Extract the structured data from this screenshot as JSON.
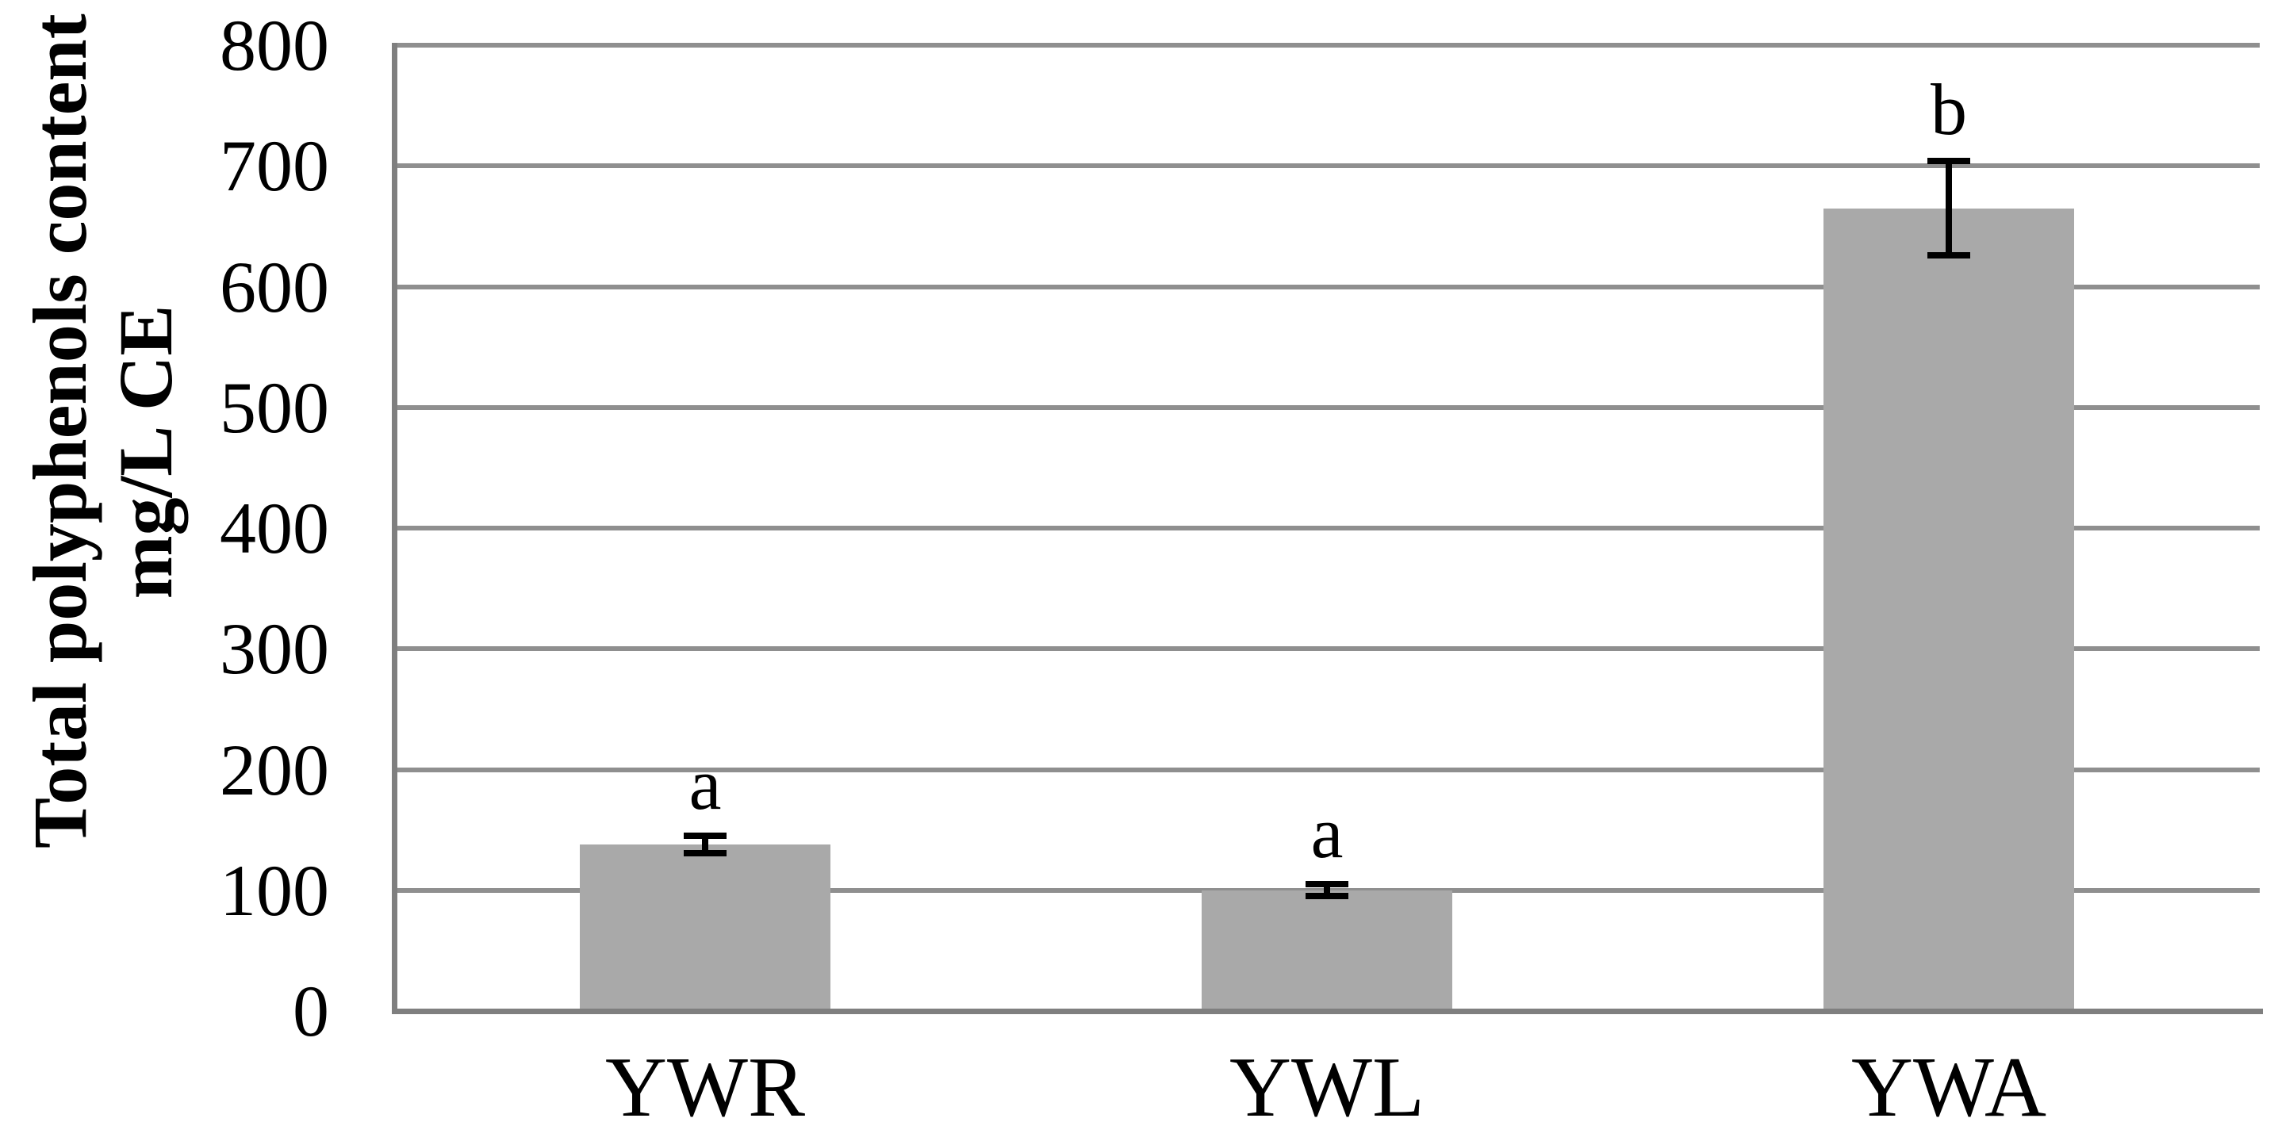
{
  "chart_data": {
    "type": "bar",
    "title": "",
    "categories": [
      "YWR",
      "YWL",
      "YWA"
    ],
    "values": [
      138,
      100,
      665
    ],
    "errors": [
      7,
      5,
      39
    ],
    "sig_letters": [
      "a",
      "a",
      "b"
    ],
    "ylabel_line1": "Total polyphenols content",
    "ylabel_line2": "mg/L CE",
    "xlabel": "",
    "ylim": [
      0,
      800
    ],
    "yticks": [
      0,
      100,
      200,
      300,
      400,
      500,
      600,
      700,
      800
    ],
    "grid": "horizontal",
    "legend_position": "none",
    "bar_color": "#a9a9a9",
    "grid_color": "#8f8f8f",
    "axis_color": "#7f7f7f",
    "error_color": "#000000",
    "text_color": "#000000"
  }
}
